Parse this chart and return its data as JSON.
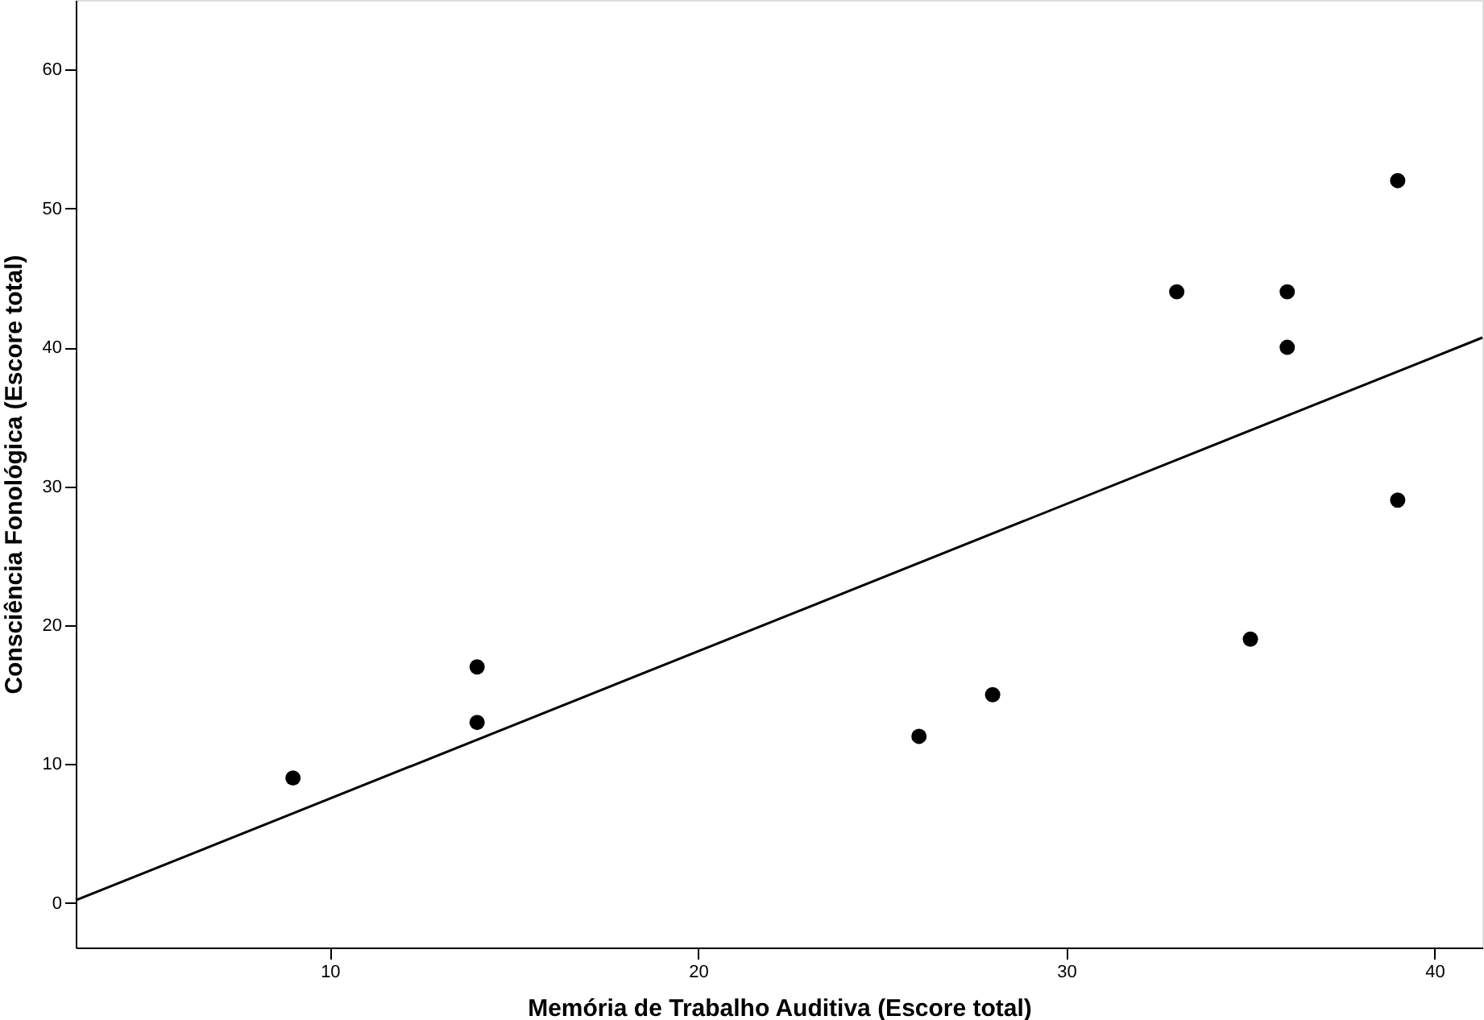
{
  "chart_data": {
    "type": "scatter",
    "xlabel": "Memória de Trabalho Auditiva (Escore total)",
    "ylabel": "Consciência Fonológica (Escore total)",
    "x": [
      9,
      14,
      14,
      26,
      28,
      33,
      35,
      36,
      36,
      39,
      39
    ],
    "series": [
      {
        "type": "scatter",
        "marker": "circle",
        "color": "#000000",
        "values": [
          9,
          17,
          13,
          12,
          15,
          44,
          19,
          44,
          40,
          52,
          29
        ]
      },
      {
        "type": "line",
        "marker": "none",
        "color": "#000000",
        "x": [
          3.1,
          41.3
        ],
        "values": [
          0.2,
          40.7
        ]
      }
    ],
    "xlim": [
      3.1,
      41.3
    ],
    "ylim": [
      -3.2,
      65
    ],
    "xticks": [
      10,
      20,
      30,
      40
    ],
    "yticks": [
      0,
      10,
      20,
      30,
      40,
      50,
      60
    ],
    "grid": false
  }
}
